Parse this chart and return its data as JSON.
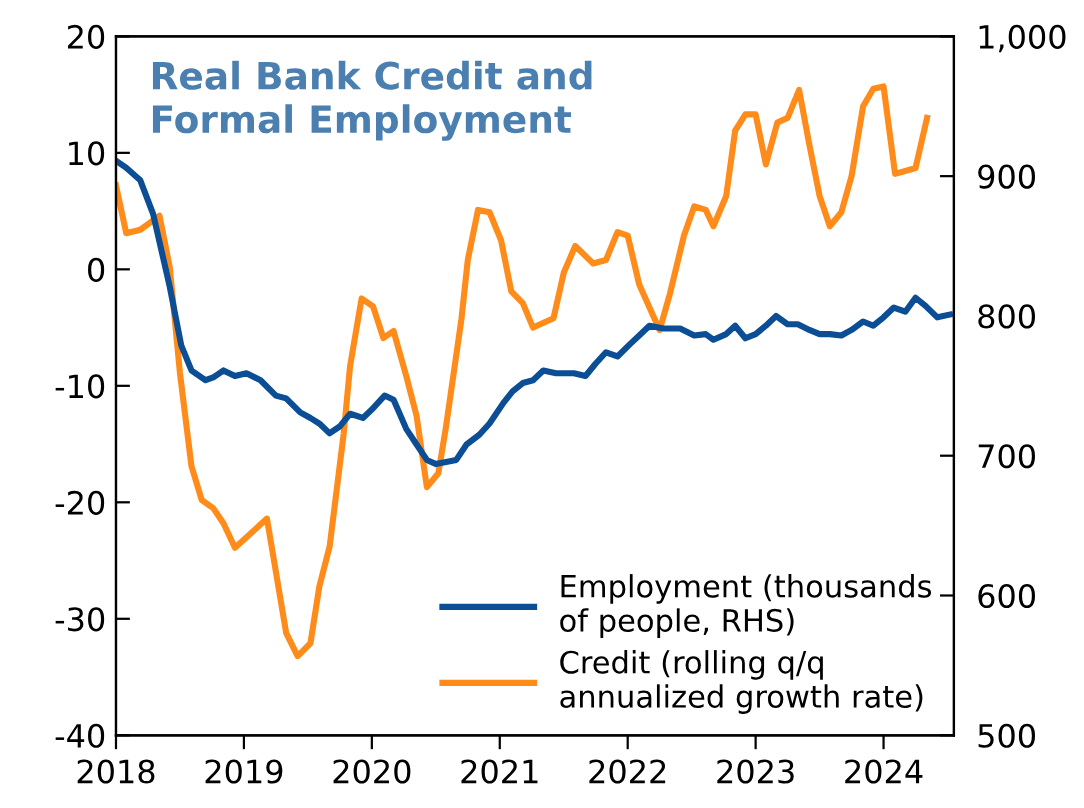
{
  "chart_data": {
    "type": "line",
    "title": "Real Bank Credit and\nFormal Employment",
    "legend": "bottom right",
    "grid": false,
    "marker": "none",
    "line_style": "solid",
    "xlim": [
      2018,
      2024.55
    ],
    "xticks": [
      2018,
      2019,
      2020,
      2021,
      2022,
      2023,
      2024
    ],
    "ylim": [
      -40,
      20
    ],
    "yticks": [
      -40,
      -30,
      -20,
      -10,
      0,
      10,
      20
    ],
    "y2lim": [
      500,
      1000
    ],
    "y2ticks": [
      500,
      600,
      700,
      800,
      900,
      {
        "value": 1000,
        "label": "1,000"
      }
    ],
    "series": [
      {
        "name": "Employment (thousands\nof people, RHS)",
        "color": "#0b4e96",
        "axis": "y2",
        "x": [
          2018.0,
          2018.08,
          2018.19,
          2018.29,
          2018.42,
          2018.51,
          2018.59,
          2018.7,
          2018.76,
          2018.84,
          2018.93,
          2019.02,
          2019.13,
          2019.25,
          2019.33,
          2019.44,
          2019.52,
          2019.59,
          2019.67,
          2019.75,
          2019.83,
          2019.93,
          2020.01,
          2020.1,
          2020.17,
          2020.27,
          2020.35,
          2020.43,
          2020.5,
          2020.66,
          2020.74,
          2020.84,
          2020.92,
          2021.03,
          2021.1,
          2021.18,
          2021.26,
          2021.34,
          2021.44,
          2021.58,
          2021.67,
          2021.75,
          2021.83,
          2021.92,
          2022.02,
          2022.09,
          2022.17,
          2022.28,
          2022.41,
          2022.52,
          2022.61,
          2022.67,
          2022.77,
          2022.84,
          2022.92,
          2023.0,
          2023.08,
          2023.16,
          2023.25,
          2023.33,
          2023.42,
          2023.5,
          2023.58,
          2023.67,
          2023.75,
          2023.84,
          2023.92,
          2024.0,
          2024.08,
          2024.17,
          2024.25,
          2024.33,
          2024.42,
          2024.52
        ],
        "values": [
          911,
          906,
          897,
          873,
          821,
          779,
          761,
          754,
          756,
          761,
          757,
          759,
          754,
          743,
          741,
          731,
          727,
          723,
          716,
          721,
          730,
          727,
          734,
          743,
          740,
          719,
          708,
          697,
          694,
          697,
          708,
          715,
          723,
          738,
          746,
          752,
          754,
          761,
          759,
          759,
          757,
          766,
          774,
          771,
          780,
          786,
          793,
          791,
          791,
          786,
          787,
          783,
          787,
          793,
          784,
          787,
          793,
          800,
          794,
          794,
          790,
          787,
          787,
          786,
          790,
          796,
          793,
          799,
          806,
          803,
          813,
          807,
          799,
          801
        ]
      },
      {
        "name": "Credit (rolling q/q\nannualized growth rate)",
        "color": "#ff8c1a",
        "x": [
          2018.0,
          2018.08,
          2018.19,
          2018.34,
          2018.42,
          2018.5,
          2018.59,
          2018.67,
          2018.76,
          2018.84,
          2018.93,
          2019.18,
          2019.33,
          2019.42,
          2019.52,
          2019.59,
          2019.67,
          2019.78,
          2019.83,
          2019.92,
          2020.01,
          2020.09,
          2020.17,
          2020.27,
          2020.35,
          2020.43,
          2020.52,
          2020.58,
          2020.7,
          2020.75,
          2020.83,
          2020.92,
          2021.01,
          2021.09,
          2021.18,
          2021.26,
          2021.42,
          2021.5,
          2021.59,
          2021.73,
          2021.83,
          2021.92,
          2022.0,
          2022.09,
          2022.2,
          2022.25,
          2022.33,
          2022.44,
          2022.52,
          2022.61,
          2022.67,
          2022.77,
          2022.84,
          2022.92,
          2023.0,
          2023.08,
          2023.17,
          2023.25,
          2023.34,
          2023.42,
          2023.5,
          2023.58,
          2023.67,
          2023.75,
          2023.84,
          2023.92,
          2024.0,
          2024.09,
          2024.25,
          2024.34
        ],
        "values": [
          7.2,
          3.1,
          3.4,
          4.6,
          0.2,
          -8.9,
          -16.9,
          -19.8,
          -20.5,
          -21.8,
          -23.9,
          -21.4,
          -31.2,
          -33.2,
          -32.1,
          -27.2,
          -23.8,
          -14.1,
          -8.3,
          -2.5,
          -3.2,
          -5.9,
          -5.3,
          -9.2,
          -12.6,
          -18.7,
          -17.5,
          -13.5,
          -4.3,
          0.8,
          5.1,
          4.9,
          2.5,
          -1.9,
          -2.9,
          -5.0,
          -4.2,
          -0.3,
          2.0,
          0.5,
          0.8,
          3.2,
          2.9,
          -1.3,
          -4.0,
          -5.2,
          -2.1,
          2.9,
          5.4,
          5.1,
          3.7,
          6.3,
          11.9,
          13.3,
          13.3,
          9.0,
          12.6,
          13.0,
          15.4,
          10.7,
          6.3,
          3.7,
          4.9,
          8.0,
          14.0,
          15.5,
          15.7,
          8.2,
          8.7,
          13.0
        ]
      }
    ]
  }
}
